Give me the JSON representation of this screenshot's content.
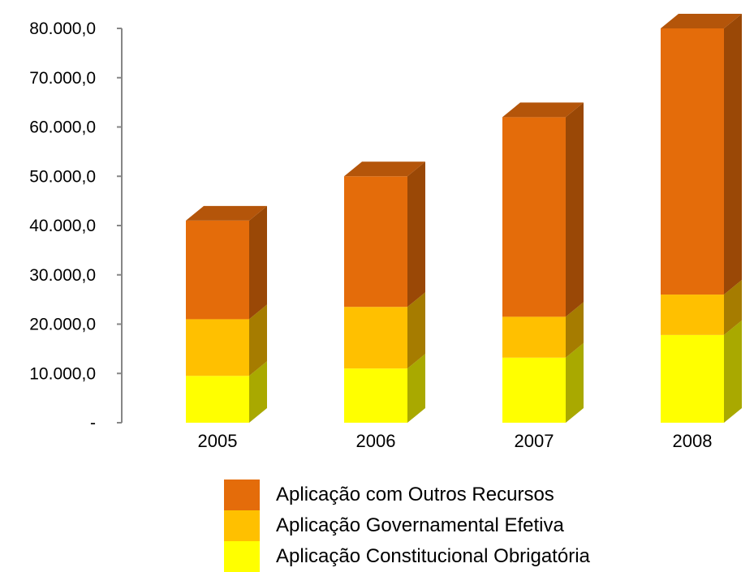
{
  "chart_data": {
    "type": "bar",
    "stacked": true,
    "three_d": true,
    "categories": [
      "2005",
      "2006",
      "2007",
      "2008"
    ],
    "series": [
      {
        "name": "Aplicação Constitucional Obrigatória",
        "color": "#FFFF00",
        "side_color": "#A9A900",
        "top_color": "#CCCC00",
        "values": [
          9500,
          11000,
          13200,
          17800
        ]
      },
      {
        "name": "Aplicação Governamental Efetiva",
        "color": "#FFC000",
        "side_color": "#A67C00",
        "top_color": "#D9A300",
        "values": [
          11500,
          12500,
          8300,
          8200
        ]
      },
      {
        "name": "Aplicação com Outros Recursos",
        "color": "#E46C0A",
        "side_color": "#9A4806",
        "top_color": "#B4550A",
        "values": [
          20000,
          26500,
          40500,
          54000
        ]
      }
    ],
    "y_ticks": [
      "-",
      "10.000,0",
      "20.000,0",
      "30.000,0",
      "40.000,0",
      "50.000,0",
      "60.000,0",
      "70.000,0",
      "80.000,0"
    ],
    "ylim": [
      0,
      80000
    ],
    "legend_position": "bottom",
    "grid": false
  }
}
